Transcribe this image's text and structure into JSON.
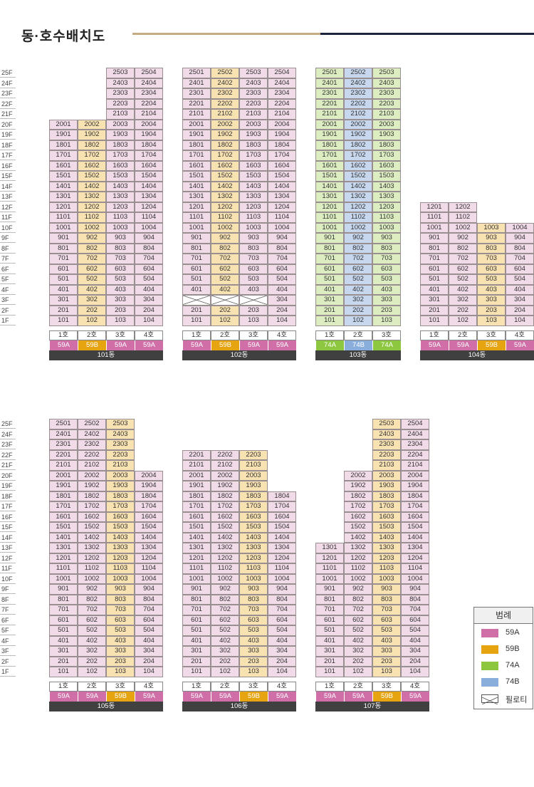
{
  "page": {
    "title": "동·호수배치도"
  },
  "floors": [
    "25F",
    "24F",
    "23F",
    "22F",
    "21F",
    "20F",
    "19F",
    "18F",
    "17F",
    "16F",
    "15F",
    "14F",
    "13F",
    "12F",
    "11F",
    "10F",
    "9F",
    "8F",
    "7F",
    "6F",
    "5F",
    "4F",
    "3F",
    "2F",
    "1F"
  ],
  "colors": {
    "59A": "#cf6ea7",
    "59B": "#e5a410",
    "74A": "#8dc63f",
    "74B": "#8aaedb"
  },
  "legend": {
    "title": "범례",
    "items": [
      {
        "type": "59A",
        "label": "59A",
        "icon": "swatch"
      },
      {
        "type": "59B",
        "label": "59B",
        "icon": "swatch"
      },
      {
        "type": "74A",
        "label": "74A",
        "icon": "swatch"
      },
      {
        "type": "74B",
        "label": "74B",
        "icon": "swatch"
      },
      {
        "type": "piloti",
        "label": "필로티",
        "icon": "piloti-cross-icon"
      }
    ]
  },
  "buildings": [
    {
      "name": "101동",
      "row": 0,
      "col": 0,
      "lines": [
        {
          "label": "1호",
          "type": "59A",
          "top": 20
        },
        {
          "label": "2호",
          "type": "59B",
          "top": 20
        },
        {
          "label": "3호",
          "type": "59A",
          "top": 25
        },
        {
          "label": "4호",
          "type": "59A",
          "top": 25
        }
      ],
      "piloti": []
    },
    {
      "name": "102동",
      "row": 0,
      "col": 1,
      "lines": [
        {
          "label": "1호",
          "type": "59A",
          "top": 25
        },
        {
          "label": "2호",
          "type": "59B",
          "top": 25
        },
        {
          "label": "3호",
          "type": "59A",
          "top": 25
        },
        {
          "label": "4호",
          "type": "59A",
          "top": 25
        }
      ],
      "piloti": [
        "3-1",
        "3-2",
        "3-3"
      ]
    },
    {
      "name": "103동",
      "row": 0,
      "col": 2,
      "lines": [
        {
          "label": "1호",
          "type": "74A",
          "top": 25
        },
        {
          "label": "2호",
          "type": "74B",
          "top": 25
        },
        {
          "label": "3호",
          "type": "74A",
          "top": 25
        }
      ],
      "piloti": []
    },
    {
      "name": "104동",
      "row": 0,
      "col": 3,
      "lines": [
        {
          "label": "1호",
          "type": "59A",
          "top": 12
        },
        {
          "label": "2호",
          "type": "59A",
          "top": 12
        },
        {
          "label": "3호",
          "type": "59B",
          "top": 10
        },
        {
          "label": "4호",
          "type": "59A",
          "top": 10
        }
      ],
      "piloti": []
    },
    {
      "name": "105동",
      "row": 1,
      "col": 0,
      "lines": [
        {
          "label": "1호",
          "type": "59A",
          "top": 25
        },
        {
          "label": "2호",
          "type": "59A",
          "top": 25
        },
        {
          "label": "3호",
          "type": "59B",
          "top": 25
        },
        {
          "label": "4호",
          "type": "59A",
          "top": 20
        }
      ],
      "piloti": []
    },
    {
      "name": "106동",
      "row": 1,
      "col": 1,
      "lines": [
        {
          "label": "1호",
          "type": "59A",
          "top": 22
        },
        {
          "label": "2호",
          "type": "59A",
          "top": 22
        },
        {
          "label": "3호",
          "type": "59B",
          "top": 22
        },
        {
          "label": "4호",
          "type": "59A",
          "top": 18
        }
      ],
      "piloti": []
    },
    {
      "name": "107동",
      "row": 1,
      "col": 2,
      "lines": [
        {
          "label": "1호",
          "type": "59A",
          "top": 13
        },
        {
          "label": "2호",
          "type": "59A",
          "top": 20
        },
        {
          "label": "3호",
          "type": "59B",
          "top": 25
        },
        {
          "label": "4호",
          "type": "59A",
          "top": 25
        }
      ],
      "piloti": []
    }
  ]
}
